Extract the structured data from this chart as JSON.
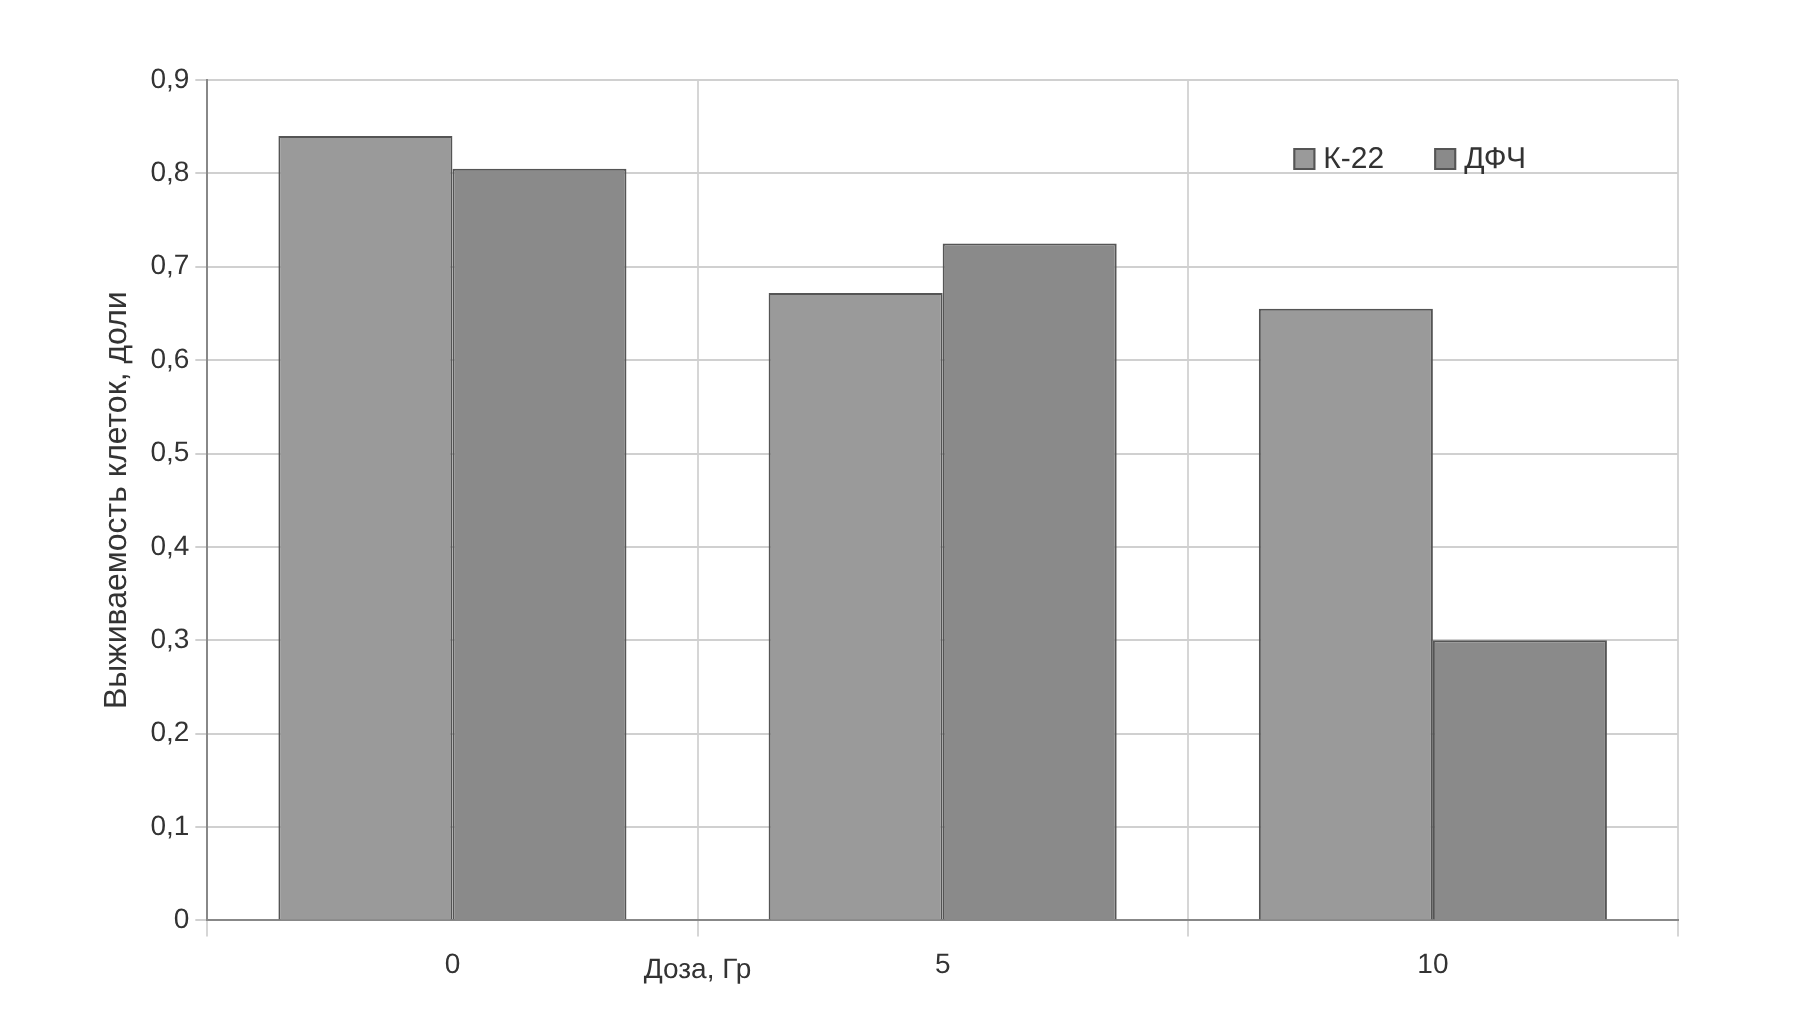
{
  "chart_data": {
    "type": "bar",
    "xlabel": "Доза, Гр",
    "ylabel": "Выживаемость клеток, доли",
    "categories": [
      "0",
      "5",
      "10"
    ],
    "series": [
      {
        "name": "К-22",
        "color": "#9a9a9a",
        "values": [
          0.84,
          0.672,
          0.655
        ]
      },
      {
        "name": "ДФЧ",
        "color": "#8a8a8a",
        "values": [
          0.805,
          0.725,
          0.3
        ]
      }
    ],
    "ylim": [
      0,
      0.9
    ],
    "yticks": [
      0,
      {
        "value": 0.1,
        "label": "0,1"
      },
      {
        "value": 0.2,
        "label": "0,2"
      },
      {
        "value": 0.3,
        "label": "0,3"
      },
      {
        "value": 0.4,
        "label": "0,4"
      },
      {
        "value": 0.5,
        "label": "0,5"
      },
      {
        "value": 0.6,
        "label": "0,6"
      },
      {
        "value": 0.7,
        "label": "0,7"
      },
      {
        "value": 0.8,
        "label": "0,8"
      },
      {
        "value": 0.9,
        "label": "0,9"
      }
    ],
    "grid": true,
    "legend": "top right"
  }
}
